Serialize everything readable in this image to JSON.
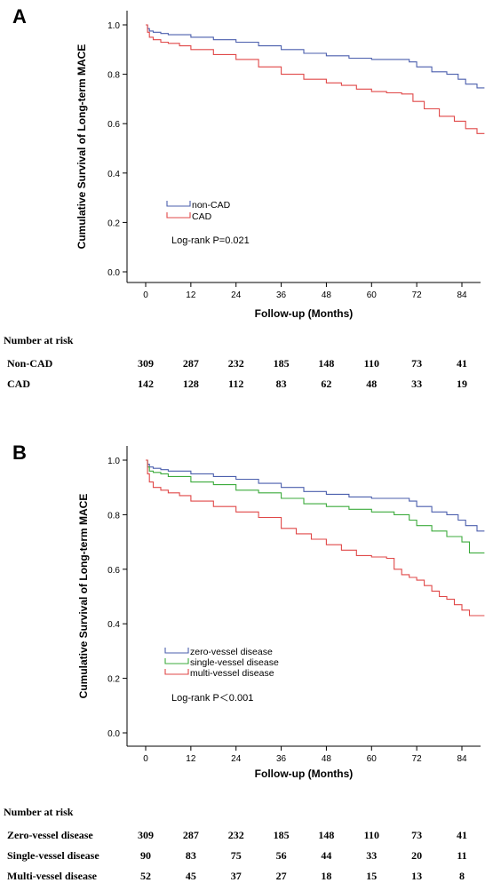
{
  "chart_data": [
    {
      "type": "line",
      "panel_label": "A",
      "xlabel": "Follow-up (Months)",
      "ylabel": "Cumulative Survival of Long-term MACE",
      "xticks": [
        "0",
        "12",
        "24",
        "36",
        "48",
        "60",
        "72",
        "84"
      ],
      "yticks": [
        "0.0",
        "0.2",
        "0.4",
        "0.6",
        "0.8",
        "1.0"
      ],
      "xlim": [
        -6,
        90
      ],
      "ylim": [
        -0.03,
        1.05
      ],
      "legend_position": "lower-left",
      "annotation": "Log-rank P=0.021",
      "series": [
        {
          "name": "non-CAD",
          "color": "#4b5fad",
          "x": [
            0,
            0.5,
            1,
            2,
            4,
            6,
            12,
            18,
            24,
            30,
            36,
            42,
            48,
            54,
            60,
            66,
            70,
            72,
            76,
            80,
            83,
            85,
            88,
            90
          ],
          "y": [
            1.0,
            0.985,
            0.975,
            0.97,
            0.965,
            0.96,
            0.95,
            0.94,
            0.93,
            0.915,
            0.9,
            0.885,
            0.875,
            0.865,
            0.86,
            0.86,
            0.85,
            0.83,
            0.81,
            0.8,
            0.78,
            0.76,
            0.745,
            0.745
          ]
        },
        {
          "name": "CAD",
          "color": "#e04848",
          "x": [
            0,
            0.5,
            1,
            2,
            4,
            6,
            9,
            12,
            18,
            24,
            30,
            36,
            42,
            48,
            52,
            56,
            60,
            64,
            68,
            71,
            74,
            78,
            82,
            85,
            88,
            90
          ],
          "y": [
            1.0,
            0.97,
            0.95,
            0.94,
            0.93,
            0.925,
            0.915,
            0.9,
            0.88,
            0.86,
            0.83,
            0.8,
            0.78,
            0.765,
            0.755,
            0.74,
            0.73,
            0.725,
            0.72,
            0.69,
            0.66,
            0.63,
            0.61,
            0.58,
            0.56,
            0.56
          ]
        }
      ]
    },
    {
      "type": "line",
      "panel_label": "B",
      "xlabel": "Follow-up (Months)",
      "ylabel": "Cumulative Survival of Long-term MACE",
      "xticks": [
        "0",
        "12",
        "24",
        "36",
        "48",
        "60",
        "72",
        "84"
      ],
      "yticks": [
        "0.0",
        "0.2",
        "0.4",
        "0.6",
        "0.8",
        "1.0"
      ],
      "xlim": [
        -6,
        90
      ],
      "ylim": [
        -0.03,
        1.05
      ],
      "legend_position": "lower-left",
      "annotation": "Log-rank P＜0.001",
      "series": [
        {
          "name": "zero-vessel disease",
          "color": "#4b5fad",
          "x": [
            0,
            0.5,
            1,
            2,
            4,
            6,
            12,
            18,
            24,
            30,
            36,
            42,
            48,
            54,
            60,
            66,
            70,
            72,
            76,
            80,
            83,
            85,
            88,
            90
          ],
          "y": [
            1.0,
            0.985,
            0.975,
            0.97,
            0.965,
            0.96,
            0.95,
            0.94,
            0.93,
            0.915,
            0.9,
            0.885,
            0.875,
            0.865,
            0.86,
            0.86,
            0.85,
            0.83,
            0.81,
            0.8,
            0.78,
            0.76,
            0.74,
            0.74
          ]
        },
        {
          "name": "single-vessel disease",
          "color": "#3cab3c",
          "x": [
            0,
            0.5,
            1,
            2,
            4,
            6,
            12,
            18,
            24,
            30,
            36,
            42,
            48,
            54,
            60,
            66,
            70,
            72,
            76,
            80,
            84,
            86,
            90
          ],
          "y": [
            1.0,
            0.975,
            0.96,
            0.955,
            0.95,
            0.94,
            0.92,
            0.91,
            0.89,
            0.88,
            0.86,
            0.84,
            0.83,
            0.82,
            0.81,
            0.8,
            0.78,
            0.76,
            0.74,
            0.72,
            0.7,
            0.66,
            0.66
          ]
        },
        {
          "name": "multi-vessel disease",
          "color": "#e04848",
          "x": [
            0,
            0.5,
            1,
            2,
            4,
            6,
            9,
            12,
            18,
            24,
            30,
            36,
            40,
            44,
            48,
            52,
            56,
            60,
            64,
            66,
            68,
            70,
            72,
            74,
            76,
            78,
            80,
            82,
            84,
            86,
            90
          ],
          "y": [
            1.0,
            0.95,
            0.92,
            0.9,
            0.89,
            0.88,
            0.87,
            0.85,
            0.83,
            0.81,
            0.79,
            0.75,
            0.73,
            0.71,
            0.69,
            0.67,
            0.65,
            0.645,
            0.64,
            0.6,
            0.58,
            0.57,
            0.56,
            0.54,
            0.52,
            0.5,
            0.49,
            0.47,
            0.45,
            0.43,
            0.43
          ]
        }
      ]
    }
  ],
  "risk_tables": [
    {
      "title": "Number at risk",
      "rows": [
        {
          "label": "Non-CAD",
          "values": [
            "309",
            "287",
            "232",
            "185",
            "148",
            "110",
            "73",
            "41"
          ]
        },
        {
          "label": "CAD",
          "values": [
            "142",
            "128",
            "112",
            "83",
            "62",
            "48",
            "33",
            "19"
          ]
        }
      ]
    },
    {
      "title": "Number at risk",
      "rows": [
        {
          "label": "Zero-vessel disease",
          "values": [
            "309",
            "287",
            "232",
            "185",
            "148",
            "110",
            "73",
            "41"
          ]
        },
        {
          "label": "Single-vessel disease",
          "values": [
            "90",
            "83",
            "75",
            "56",
            "44",
            "33",
            "20",
            "11"
          ]
        },
        {
          "label": "Multi-vessel disease",
          "values": [
            "52",
            "45",
            "37",
            "27",
            "18",
            "15",
            "13",
            "8"
          ]
        }
      ]
    }
  ]
}
